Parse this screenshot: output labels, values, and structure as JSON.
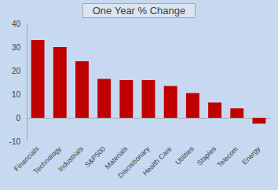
{
  "chart_data": {
    "type": "bar",
    "title": "One Year % Change",
    "categories": [
      "Financials",
      "Technology",
      "Industrials",
      "S&P500",
      "Materials",
      "Discretionary",
      "Health Care",
      "Utilities",
      "Staples",
      "Telecom",
      "Energy"
    ],
    "values": [
      33,
      30,
      24,
      16.5,
      16,
      16,
      13.5,
      10.5,
      6.5,
      4,
      -2.5
    ],
    "color": "#c00000",
    "ylim": [
      -10,
      40
    ],
    "yticks": [
      -10,
      0,
      10,
      20,
      30,
      40
    ],
    "grid": false
  }
}
